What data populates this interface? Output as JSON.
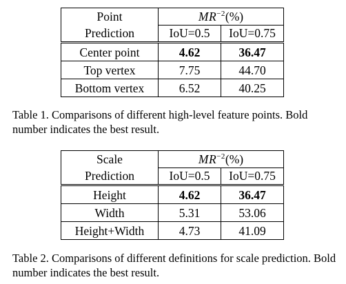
{
  "table1": {
    "header": {
      "col1_line1": "Point",
      "col1_line2": "Prediction",
      "metric_base": "MR",
      "metric_exp": "−2",
      "metric_unit": "(%)",
      "sub1": "IoU=0.5",
      "sub2": "IoU=0.75"
    },
    "rows": [
      {
        "label": "Center point",
        "v1": "4.62",
        "v2": "36.47"
      },
      {
        "label": "Top vertex",
        "v1": "7.75",
        "v2": "44.70"
      },
      {
        "label": "Bottom vertex",
        "v1": "6.52",
        "v2": "40.25"
      }
    ],
    "caption": "Table 1. Comparisons of different high-level feature points. Bold number indicates the best result."
  },
  "table2": {
    "header": {
      "col1_line1": "Scale",
      "col1_line2": "Prediction",
      "metric_base": "MR",
      "metric_exp": "−2",
      "metric_unit": "(%)",
      "sub1": "IoU=0.5",
      "sub2": "IoU=0.75"
    },
    "rows": [
      {
        "label": "Height",
        "v1": "4.62",
        "v2": "36.47"
      },
      {
        "label": "Width",
        "v1": "5.31",
        "v2": "53.06"
      },
      {
        "label": "Height+Width",
        "v1": "4.73",
        "v2": "41.09"
      }
    ],
    "caption": "Table 2. Comparisons of different definitions for scale prediction. Bold number indicates the best result."
  }
}
